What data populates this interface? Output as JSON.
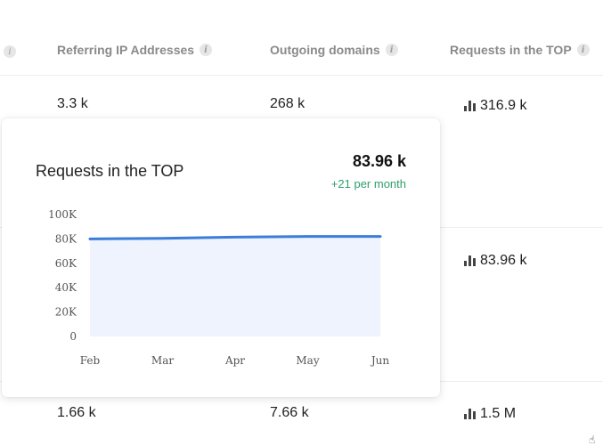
{
  "table": {
    "headers": [
      {
        "label": "Referring IP Addresses"
      },
      {
        "label": "Outgoing domains"
      },
      {
        "label": "Requests in the TOP"
      }
    ],
    "rows": [
      {
        "ips": "3.3 k",
        "domains": "268 k",
        "requests": "316.9 k"
      },
      {
        "ips": "",
        "domains": "",
        "requests": "83.96 k"
      },
      {
        "ips": "1.66 k",
        "domains": "7.66 k",
        "requests": "1.5 M"
      }
    ]
  },
  "tooltip": {
    "title": "Requests in the TOP",
    "value": "83.96 k",
    "delta": "+21 per month"
  },
  "chart_data": {
    "type": "area",
    "categories": [
      "Feb",
      "Mar",
      "Apr",
      "May",
      "Jun"
    ],
    "values": [
      80,
      80.5,
      81.5,
      82,
      82
    ],
    "y_ticks": [
      "100K",
      "80K",
      "60K",
      "40K",
      "20K",
      "0"
    ],
    "ylim": [
      0,
      100
    ],
    "colors": {
      "line": "#3b7dd8",
      "fill": "#eef3fd"
    }
  }
}
